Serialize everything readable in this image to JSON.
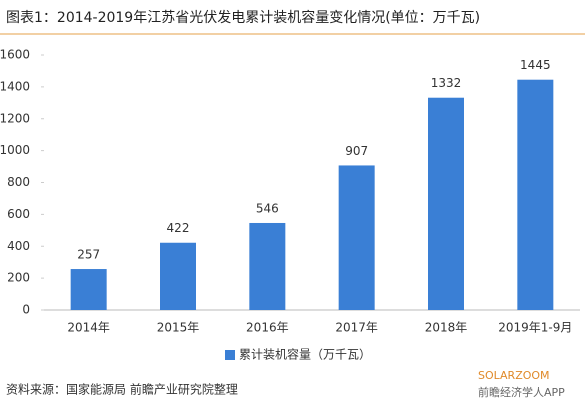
{
  "chart_data": {
    "type": "bar",
    "title": "图表1：2014-2019年江苏省光伏发电累计装机容量变化情况(单位：万千瓦)",
    "categories": [
      "2014年",
      "2015年",
      "2016年",
      "2017年",
      "2018年",
      "2019年1-9月"
    ],
    "series": [
      {
        "name": "累计装机容量（万千瓦）",
        "color": "#3a7fd5",
        "values": [
          257,
          422,
          546,
          907,
          1332,
          1445
        ]
      }
    ],
    "ylim": [
      0,
      1600
    ],
    "yticks": [
      0,
      200,
      400,
      600,
      800,
      1000,
      1200,
      1400,
      1600
    ],
    "grid": false,
    "legend": "bottom",
    "source": "资料来源：国家能源局 前瞻产业研究院整理",
    "watermarks": [
      "SOLARZOOM",
      "前瞻经济学人APP"
    ]
  }
}
